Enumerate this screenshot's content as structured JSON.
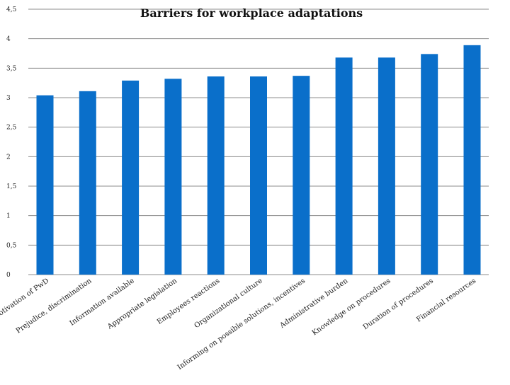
{
  "chart_data": {
    "type": "bar",
    "title": "Barriers for workplace adaptations",
    "xlabel": "",
    "ylabel": "",
    "ylim": [
      0,
      4.5
    ],
    "yticks": [
      "0",
      "0,5",
      "1",
      "1,5",
      "2",
      "2,5",
      "3",
      "3,5",
      "4",
      "4,5"
    ],
    "grid": true,
    "bar_color": "#0a6fca",
    "categories": [
      "Motivation of PwD",
      "Prejudice, discrimination",
      "Information available",
      "Appropriate legislation",
      "Employees reactions",
      "Organizational culture",
      "Informing on possible solutions, incentives",
      "Administrative burden",
      "Knowledge on procedures",
      "Duration of procedures",
      "Financial resources"
    ],
    "values": [
      3.04,
      3.11,
      3.29,
      3.32,
      3.36,
      3.36,
      3.37,
      3.68,
      3.68,
      3.74,
      3.89
    ]
  }
}
